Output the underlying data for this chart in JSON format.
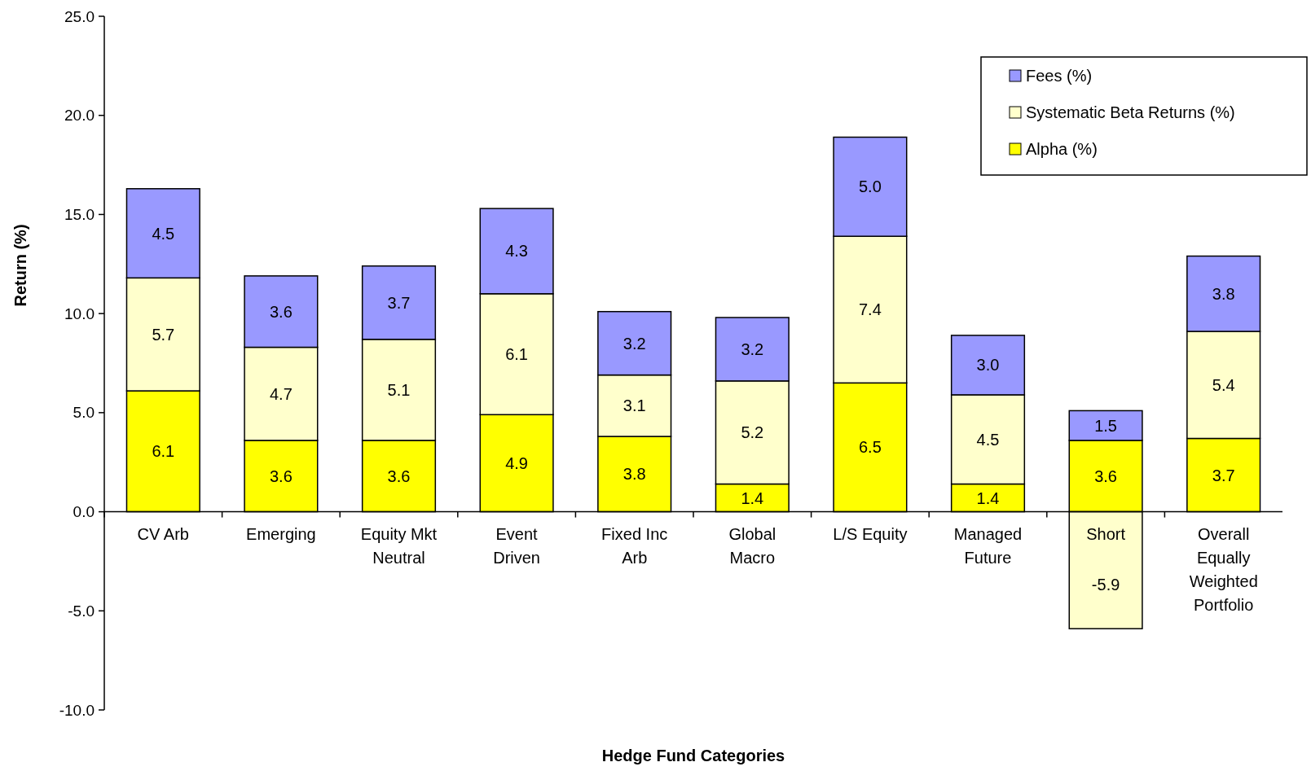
{
  "chart_data": {
    "type": "bar",
    "stacked": true,
    "xlabel": "Hedge Fund Categories",
    "ylabel": "Return (%)",
    "categories": [
      "CV Arb",
      "Emerging",
      "Equity Mkt Neutral",
      "Event Driven",
      "Fixed Inc Arb",
      "Global Macro",
      "L/S Equity",
      "Managed Future",
      "Short",
      "Overall Equally Weighted Portfolio"
    ],
    "series": [
      {
        "name": "Alpha (%)",
        "color": "#ffff00",
        "values": [
          6.1,
          3.6,
          3.6,
          4.9,
          3.8,
          1.4,
          6.5,
          1.4,
          3.6,
          3.7
        ],
        "value_labels": [
          "6.1",
          "3.6",
          "3.6",
          "4.9",
          "3.8",
          "1.4",
          "6.5",
          "1.4",
          "3.6",
          "3.7"
        ]
      },
      {
        "name": "Systematic Beta Returns (%)",
        "color": "#ffffcc",
        "values": [
          5.7,
          4.7,
          5.1,
          6.1,
          3.1,
          5.2,
          7.4,
          4.5,
          -5.9,
          5.4
        ],
        "value_labels": [
          "5.7",
          "4.7",
          "5.1",
          "6.1",
          "3.1",
          "5.2",
          "7.4",
          "4.5",
          "-5.9",
          "5.4"
        ]
      },
      {
        "name": "Fees (%)",
        "color": "#9999ff",
        "values": [
          4.5,
          3.6,
          3.7,
          4.3,
          3.2,
          3.2,
          5.0,
          3.0,
          1.5,
          3.8
        ],
        "value_labels": [
          "4.5",
          "3.6",
          "3.7",
          "4.3",
          "3.2",
          "3.2",
          "5.0",
          "3.0",
          "1.5",
          "3.8"
        ]
      }
    ],
    "ylim": [
      -10,
      25
    ],
    "yticks": [
      {
        "value": -10,
        "label": "-10.0"
      },
      {
        "value": -5,
        "label": "-5.0"
      },
      {
        "value": 0,
        "label": "0.0"
      },
      {
        "value": 5,
        "label": "5.0"
      },
      {
        "value": 10,
        "label": "10.0"
      },
      {
        "value": 15,
        "label": "15.0"
      },
      {
        "value": 20,
        "label": "20.0"
      },
      {
        "value": 25,
        "label": "25.0"
      }
    ],
    "grid": false,
    "legend": "top right"
  }
}
